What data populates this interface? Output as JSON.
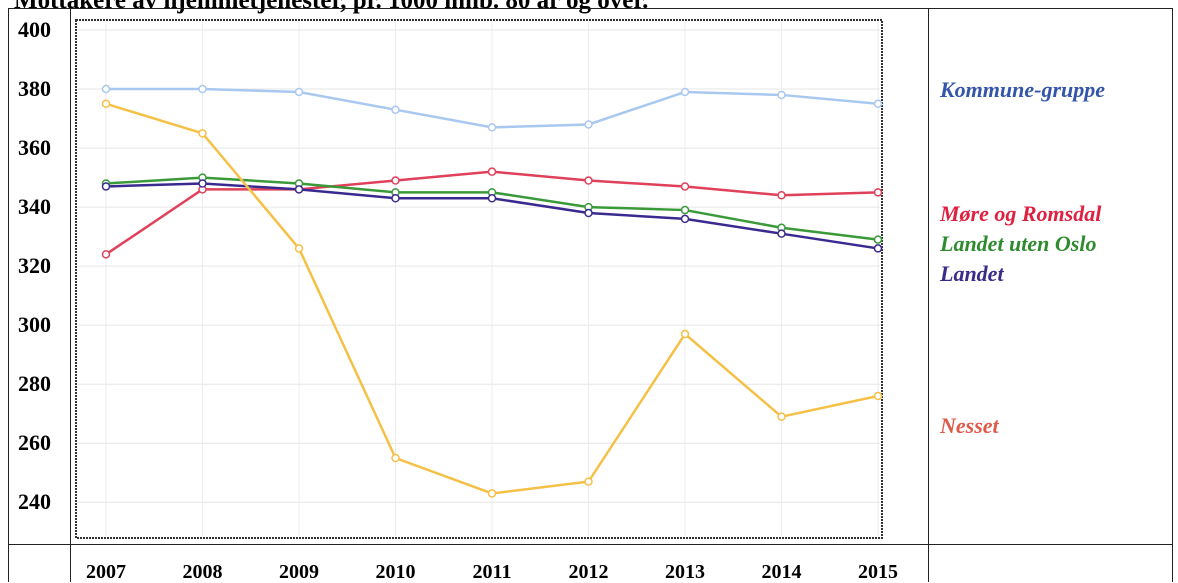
{
  "chart_data": {
    "type": "line",
    "title": "Mottakere av hjemmetjenester, pr. 1000 innb. 80 år og over.",
    "x": [
      "2007",
      "2008",
      "2009",
      "2010",
      "2011",
      "2012",
      "2013",
      "2014",
      "2015"
    ],
    "ylim": [
      234,
      400
    ],
    "yticks": [
      "400",
      "380",
      "360",
      "340",
      "320",
      "300",
      "280",
      "260",
      "240"
    ],
    "grid": true,
    "legend_position": "right",
    "series": [
      {
        "name": "Kommune-gruppe",
        "color": "#a8c8f0",
        "legend_color": "#3355aa",
        "values": [
          380,
          380,
          379,
          373,
          367,
          368,
          379,
          378,
          375
        ]
      },
      {
        "name": "Møre og Romsdal",
        "color": "#e0405a",
        "legend_color": "#e02040",
        "values": [
          324,
          346,
          346,
          349,
          352,
          349,
          347,
          344,
          345
        ]
      },
      {
        "name": "Landet uten Oslo",
        "color": "#3a9a3a",
        "legend_color": "#2e8b2e",
        "values": [
          348,
          350,
          348,
          345,
          345,
          340,
          339,
          333,
          329
        ]
      },
      {
        "name": "Landet",
        "color": "#3a2a90",
        "legend_color": "#3a2a8a",
        "values": [
          347,
          348,
          346,
          343,
          343,
          338,
          336,
          331,
          326
        ]
      },
      {
        "name": "Nesset",
        "color": "#f5c046",
        "legend_color": "#e05a4a",
        "values": [
          375,
          365,
          326,
          255,
          243,
          247,
          297,
          269,
          276
        ]
      }
    ]
  }
}
